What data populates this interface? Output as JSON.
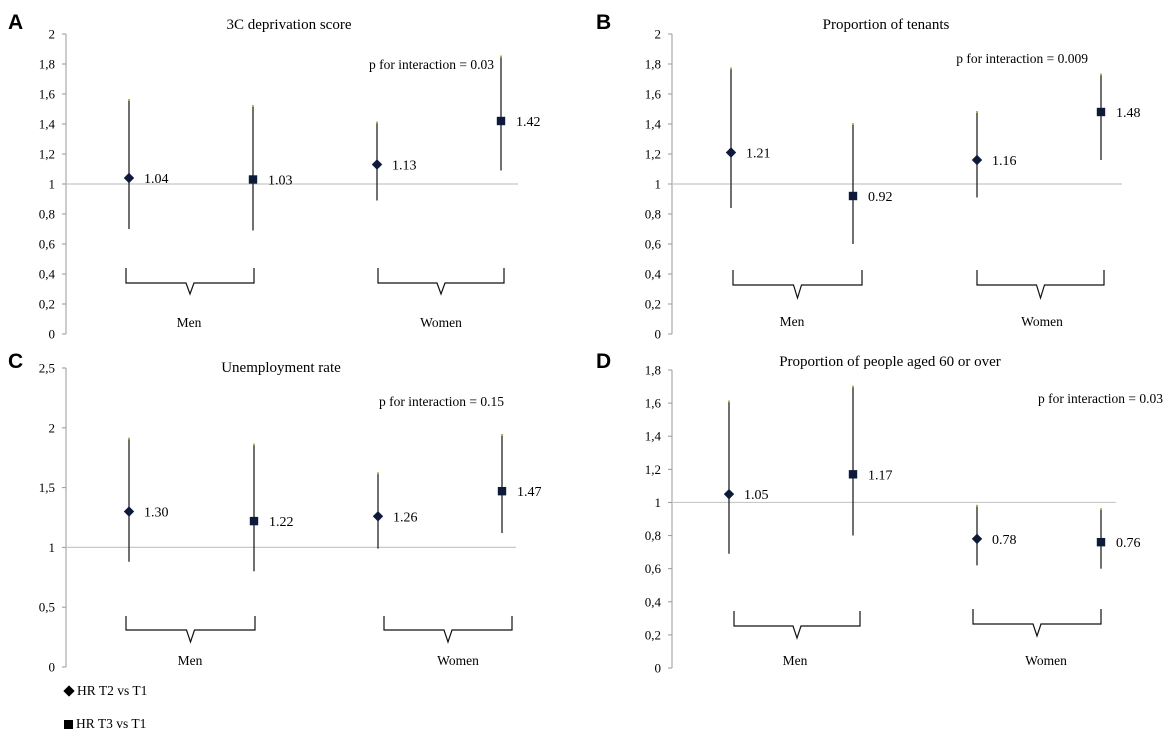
{
  "chart_data": [
    {
      "panel": "A",
      "type": "scatter",
      "title": "3C deprivation score",
      "annotation": "p for interaction = 0.03",
      "ylim": [
        0,
        2
      ],
      "yticks": [
        "0",
        "0,2",
        "0,4",
        "0,6",
        "0,8",
        "1",
        "1,2",
        "1,4",
        "1,6",
        "1,8",
        "2"
      ],
      "yticks_values": [
        0,
        0.2,
        0.4,
        0.6,
        0.8,
        1,
        1.2,
        1.4,
        1.6,
        1.8,
        2
      ],
      "reference_line": 1,
      "groups": [
        "Men",
        "Women"
      ],
      "points": [
        {
          "group": "Men",
          "series": "HR T2 vs T1",
          "value": 1.04,
          "label": "1.04",
          "ci": [
            0.7,
            1.56
          ]
        },
        {
          "group": "Men",
          "series": "HR T3 vs T1",
          "value": 1.03,
          "label": "1.03",
          "ci": [
            0.69,
            1.52
          ]
        },
        {
          "group": "Women",
          "series": "HR T2 vs T1",
          "value": 1.13,
          "label": "1.13",
          "ci": [
            0.89,
            1.41
          ]
        },
        {
          "group": "Women",
          "series": "HR T3 vs T1",
          "value": 1.42,
          "label": "1.42",
          "ci": [
            1.09,
            1.85
          ]
        }
      ]
    },
    {
      "panel": "B",
      "type": "scatter",
      "title": "Proportion of tenants",
      "annotation": "p for interaction = 0.009",
      "ylim": [
        0,
        2
      ],
      "yticks": [
        "0",
        "0,2",
        "0,4",
        "0,6",
        "0,8",
        "1",
        "1,2",
        "1,4",
        "1,6",
        "1,8",
        "2"
      ],
      "yticks_values": [
        0,
        0.2,
        0.4,
        0.6,
        0.8,
        1,
        1.2,
        1.4,
        1.6,
        1.8,
        2
      ],
      "reference_line": 1,
      "groups": [
        "Men",
        "Women"
      ],
      "points": [
        {
          "group": "Men",
          "series": "HR T2 vs T1",
          "value": 1.21,
          "label": "1.21",
          "ci": [
            0.84,
            1.77
          ]
        },
        {
          "group": "Men",
          "series": "HR T3 vs T1",
          "value": 0.92,
          "label": "0.92",
          "ci": [
            0.6,
            1.4
          ]
        },
        {
          "group": "Women",
          "series": "HR T2 vs T1",
          "value": 1.16,
          "label": "1.16",
          "ci": [
            0.91,
            1.48
          ]
        },
        {
          "group": "Women",
          "series": "HR T3 vs T1",
          "value": 1.48,
          "label": "1.48",
          "ci": [
            1.16,
            1.73
          ]
        }
      ]
    },
    {
      "panel": "C",
      "type": "scatter",
      "title": "Unemployment rate",
      "annotation": "p for interaction = 0.15",
      "ylim": [
        0,
        2.5
      ],
      "yticks": [
        "0",
        "0,5",
        "1",
        "1,5",
        "2",
        "2,5"
      ],
      "yticks_values": [
        0,
        0.5,
        1,
        1.5,
        2,
        2.5
      ],
      "reference_line": 1,
      "groups": [
        "Men",
        "Women"
      ],
      "points": [
        {
          "group": "Men",
          "series": "HR T2 vs T1",
          "value": 1.3,
          "label": "1.30",
          "ci": [
            0.88,
            1.91
          ]
        },
        {
          "group": "Men",
          "series": "HR T3 vs T1",
          "value": 1.22,
          "label": "1.22",
          "ci": [
            0.8,
            1.86
          ]
        },
        {
          "group": "Women",
          "series": "HR T2 vs T1",
          "value": 1.26,
          "label": "1.26",
          "ci": [
            0.99,
            1.62
          ]
        },
        {
          "group": "Women",
          "series": "HR T3 vs T1",
          "value": 1.47,
          "label": "1.47",
          "ci": [
            1.12,
            1.94
          ]
        }
      ]
    },
    {
      "panel": "D",
      "type": "scatter",
      "title": "Proportion of people aged 60 or over",
      "annotation": "p for interaction = 0.03",
      "ylim": [
        0,
        1.8
      ],
      "yticks": [
        "0",
        "0,2",
        "0,4",
        "0,6",
        "0,8",
        "1",
        "1,2",
        "1,4",
        "1,6",
        "1,8"
      ],
      "yticks_values": [
        0,
        0.2,
        0.4,
        0.6,
        0.8,
        1,
        1.2,
        1.4,
        1.6,
        1.8
      ],
      "reference_line": 1,
      "groups": [
        "Men",
        "Women"
      ],
      "points": [
        {
          "group": "Men",
          "series": "HR T2 vs T1",
          "value": 1.05,
          "label": "1.05",
          "ci": [
            0.69,
            1.61
          ]
        },
        {
          "group": "Men",
          "series": "HR T3 vs T1",
          "value": 1.17,
          "label": "1.17",
          "ci": [
            0.8,
            1.7
          ]
        },
        {
          "group": "Women",
          "series": "HR T2 vs T1",
          "value": 0.78,
          "label": "0.78",
          "ci": [
            0.62,
            0.98
          ]
        },
        {
          "group": "Women",
          "series": "HR T3 vs T1",
          "value": 0.76,
          "label": "0.76",
          "ci": [
            0.6,
            0.96
          ]
        }
      ]
    }
  ],
  "legend": [
    {
      "marker": "diamond",
      "label": "HR T2 vs T1"
    },
    {
      "marker": "square",
      "label": "HR T3 vs T1"
    }
  ],
  "colors": {
    "marker": "#0d1a3a",
    "errorbar": "#222222",
    "cap": "#b5b54a",
    "reference": "#c8c8c8",
    "axis": "#999999"
  }
}
